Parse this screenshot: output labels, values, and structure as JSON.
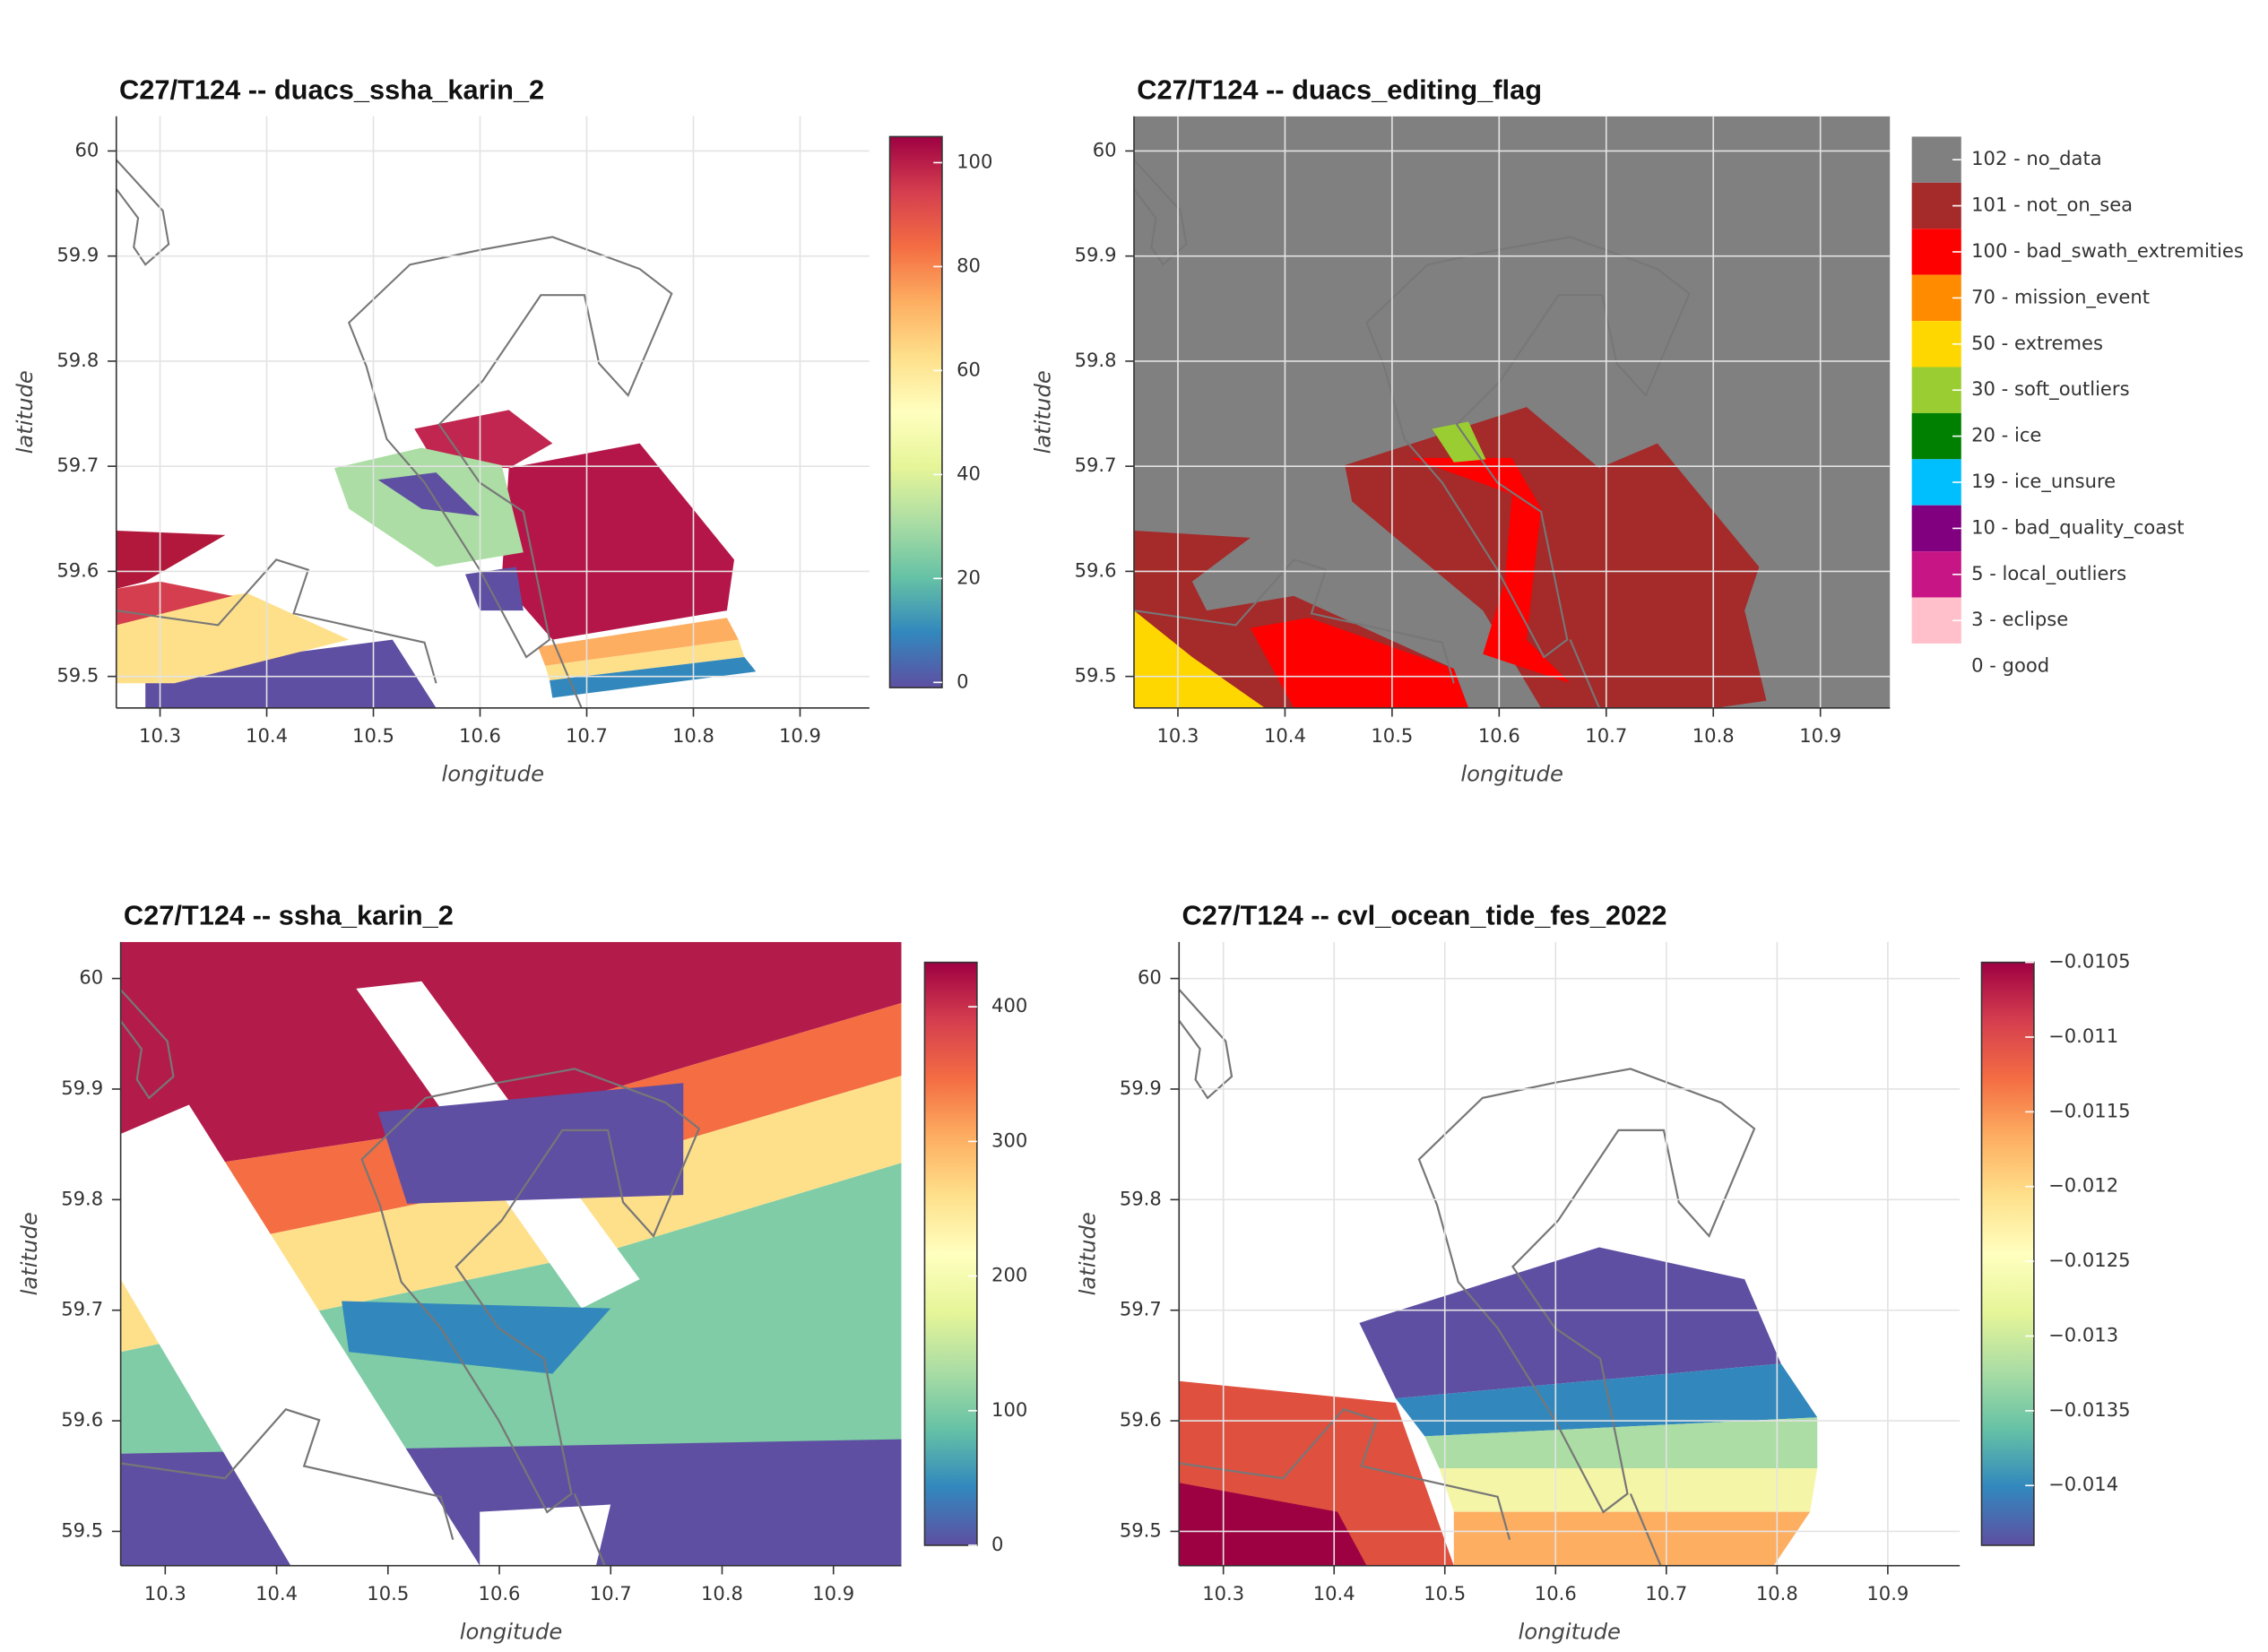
{
  "chart_data": [
    {
      "type": "heatmap",
      "title": "C27/T124 -- duacs_ssha_karin_2",
      "xlabel": "longitude",
      "ylabel": "latitude",
      "xlim": [
        10.259,
        10.965
      ],
      "ylim": [
        59.47,
        60.033
      ],
      "xticks": [
        10.3,
        10.4,
        10.5,
        10.6,
        10.7,
        10.8,
        10.9
      ],
      "yticks": [
        59.5,
        59.6,
        59.7,
        59.8,
        59.9,
        60
      ],
      "grid": true,
      "colormap": "Spectral_r",
      "colorbar": {
        "lim": [
          -1,
          105
        ],
        "ticks": [
          0,
          20,
          40,
          60,
          80,
          100
        ]
      }
    },
    {
      "type": "heatmap",
      "title": "C27/T124 -- duacs_editing_flag",
      "xlabel": "longitude",
      "ylabel": "latitude",
      "xlim": [
        10.259,
        10.965
      ],
      "ylim": [
        59.47,
        60.033
      ],
      "xticks": [
        10.3,
        10.4,
        10.5,
        10.6,
        10.7,
        10.8,
        10.9
      ],
      "yticks": [
        59.5,
        59.6,
        59.7,
        59.8,
        59.9,
        60
      ],
      "grid": true,
      "legend": [
        {
          "label": "102 - no_data",
          "color": "#808080"
        },
        {
          "label": "101 - not_on_sea",
          "color": "#a52a2a"
        },
        {
          "label": "100 - bad_swath_extremities",
          "color": "#ff0000"
        },
        {
          "label": "70 - mission_event",
          "color": "#ff8c00"
        },
        {
          "label": "50 - extremes",
          "color": "#ffd700"
        },
        {
          "label": "30 - soft_outliers",
          "color": "#9acd32"
        },
        {
          "label": "20 - ice",
          "color": "#008000"
        },
        {
          "label": "19 - ice_unsure",
          "color": "#00bfff"
        },
        {
          "label": "10 - bad_quality_coast",
          "color": "#800080"
        },
        {
          "label": "5 - local_outliers",
          "color": "#c71585"
        },
        {
          "label": "3 - eclipse",
          "color": "#ffc0cb"
        },
        {
          "label": "0 - good",
          "color": "#ffffff"
        }
      ]
    },
    {
      "type": "heatmap",
      "title": "C27/T124 -- ssha_karin_2",
      "xlabel": "longitude",
      "ylabel": "latitude",
      "xlim": [
        10.26,
        10.961
      ],
      "ylim": [
        59.469,
        60.033
      ],
      "xticks": [
        10.3,
        10.4,
        10.5,
        10.6,
        10.7,
        10.8,
        10.9
      ],
      "yticks": [
        59.5,
        59.6,
        59.7,
        59.8,
        59.9,
        60
      ],
      "grid": false,
      "colormap": "Spectral_r",
      "colorbar": {
        "lim": [
          0,
          433
        ],
        "ticks": [
          0,
          100,
          200,
          300,
          400
        ]
      }
    },
    {
      "type": "heatmap",
      "title": "C27/T124 -- cvl_ocean_tide_fes_2022",
      "xlabel": "longitude",
      "ylabel": "latitude",
      "xlim": [
        10.26,
        10.965
      ],
      "ylim": [
        59.469,
        60.033
      ],
      "xticks": [
        10.3,
        10.4,
        10.5,
        10.6,
        10.7,
        10.8,
        10.9
      ],
      "yticks": [
        59.5,
        59.6,
        59.7,
        59.8,
        59.9,
        60
      ],
      "grid": true,
      "colormap": "Spectral_r",
      "colorbar": {
        "lim": [
          -0.0144,
          -0.0105
        ],
        "ticks": [
          {
            "value": -0.0105,
            "label": "−0.0105"
          },
          {
            "value": -0.011,
            "label": "−0.011"
          },
          {
            "value": -0.0115,
            "label": "−0.0115"
          },
          {
            "value": -0.012,
            "label": "−0.012"
          },
          {
            "value": -0.0125,
            "label": "−0.0125"
          },
          {
            "value": -0.013,
            "label": "−0.013"
          },
          {
            "value": -0.0135,
            "label": "−0.0135"
          },
          {
            "value": -0.014,
            "label": "−0.014"
          }
        ]
      }
    }
  ]
}
